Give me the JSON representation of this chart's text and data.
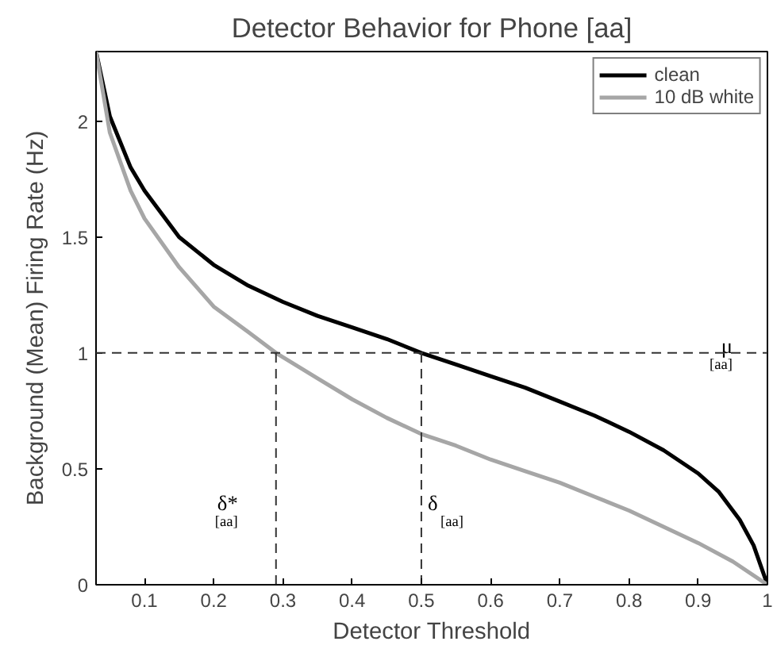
{
  "chart_data": {
    "type": "line",
    "title": "Detector Behavior for Phone [aa]",
    "xlabel": "Detector Threshold",
    "ylabel": "Background (Mean) Firing Rate (Hz)",
    "xlim": [
      0.03,
      1
    ],
    "ylim": [
      0,
      2.3
    ],
    "xticks": [
      0.1,
      0.2,
      0.3,
      0.4,
      0.5,
      0.6,
      0.7,
      0.8,
      0.9,
      1
    ],
    "yticks": [
      0,
      0.5,
      1,
      1.5,
      2
    ],
    "grid": false,
    "legend": "top right",
    "line_style": "solid",
    "marker": "none",
    "series": [
      {
        "name": "clean",
        "color": "#000000",
        "x": [
          0.03,
          0.05,
          0.08,
          0.1,
          0.15,
          0.2,
          0.25,
          0.3,
          0.35,
          0.4,
          0.45,
          0.5,
          0.55,
          0.6,
          0.65,
          0.7,
          0.75,
          0.8,
          0.85,
          0.9,
          0.93,
          0.96,
          0.98,
          1.0
        ],
        "values": [
          2.3,
          2.02,
          1.8,
          1.7,
          1.5,
          1.38,
          1.29,
          1.22,
          1.16,
          1.11,
          1.06,
          1.0,
          0.95,
          0.9,
          0.85,
          0.79,
          0.73,
          0.66,
          0.58,
          0.48,
          0.4,
          0.28,
          0.17,
          0
        ]
      },
      {
        "name": "10 dB white",
        "color": "#a6a6a6",
        "x": [
          0.03,
          0.05,
          0.08,
          0.1,
          0.15,
          0.2,
          0.25,
          0.29,
          0.35,
          0.4,
          0.45,
          0.5,
          0.55,
          0.6,
          0.65,
          0.7,
          0.75,
          0.8,
          0.85,
          0.9,
          0.95,
          1.0
        ],
        "values": [
          2.3,
          1.95,
          1.7,
          1.58,
          1.37,
          1.2,
          1.09,
          1.0,
          0.89,
          0.8,
          0.72,
          0.65,
          0.6,
          0.54,
          0.49,
          0.44,
          0.38,
          0.32,
          0.25,
          0.18,
          0.1,
          0
        ]
      },
      {
        "color": "#333333",
        "line_style": "dashed",
        "x": [
          0.29,
          0.29
        ],
        "values": [
          0,
          1
        ]
      },
      {
        "color": "#333333",
        "line_style": "dashed",
        "x": [
          0.5,
          0.5
        ],
        "values": [
          0,
          1
        ]
      }
    ],
    "ref_lines": [
      {
        "axis": "y",
        "value": 1,
        "label": "μ$_{[aa]}$",
        "color": "#333333",
        "line_style": "dashed"
      }
    ],
    "annotations": [
      {
        "text": "δ*$_{[aa]}$",
        "x": 0.29,
        "y": 0.3
      },
      {
        "text": "δ$_{[aa]}$",
        "x": 0.5,
        "y": 0.3
      }
    ]
  }
}
